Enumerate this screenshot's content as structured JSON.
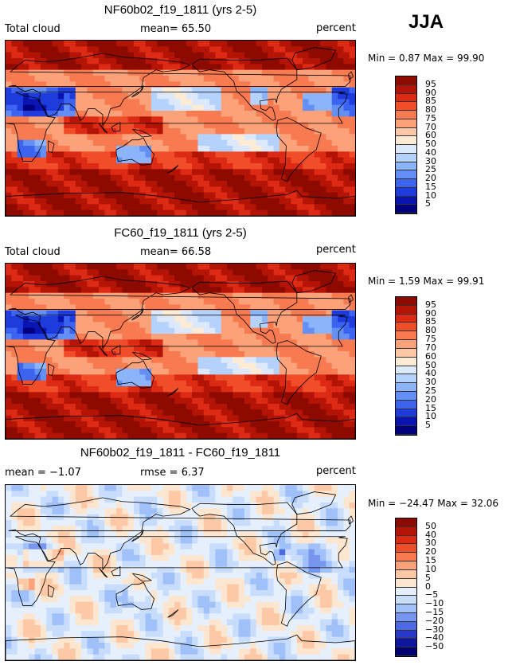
{
  "season": "JJA",
  "palette_abs": [
    "#f5f5fc",
    "#000080",
    "#0a14b0",
    "#1e3cdc",
    "#3c64f0",
    "#6490f5",
    "#8cb4fa",
    "#b4d2fc",
    "#dce9fd",
    "#fdebd6",
    "#fcc8a6",
    "#fba27a",
    "#f87a50",
    "#f04e28",
    "#dc2a14",
    "#b41405",
    "#8c0a00"
  ],
  "panels": [
    {
      "title": "NF60b02_f19_1811 (yrs 2-5)",
      "left": "Total cloud",
      "mid": "mean=  65.50",
      "right": "percent",
      "minmax": "Min =   0.87 Max =  99.90",
      "map_name": "map-nf60b02",
      "colorbar_labels": [
        "95",
        "90",
        "85",
        "80",
        "75",
        "70",
        "60",
        "50",
        "40",
        "30",
        "25",
        "20",
        "15",
        "10",
        "5"
      ]
    },
    {
      "title": "FC60_f19_1811 (yrs 2-5)",
      "left": "Total cloud",
      "mid": "mean=  66.58",
      "right": "percent",
      "minmax": "Min =   1.59 Max =  99.91",
      "map_name": "map-fc60",
      "colorbar_labels": [
        "95",
        "90",
        "85",
        "80",
        "75",
        "70",
        "60",
        "50",
        "40",
        "30",
        "25",
        "20",
        "15",
        "10",
        "5"
      ]
    },
    {
      "title": "NF60b02_f19_1811 - FC60_f19_1811",
      "left": "mean =  −1.07",
      "mid": "rmse =   6.37",
      "right": "percent",
      "minmax": "Min = −24.47 Max =  32.06",
      "map_name": "map-difference",
      "colorbar_labels": [
        "50",
        "40",
        "30",
        "20",
        "15",
        "10",
        "5",
        "0",
        "−5",
        "−10",
        "−15",
        "−20",
        "−30",
        "−40",
        "−50"
      ]
    }
  ]
}
